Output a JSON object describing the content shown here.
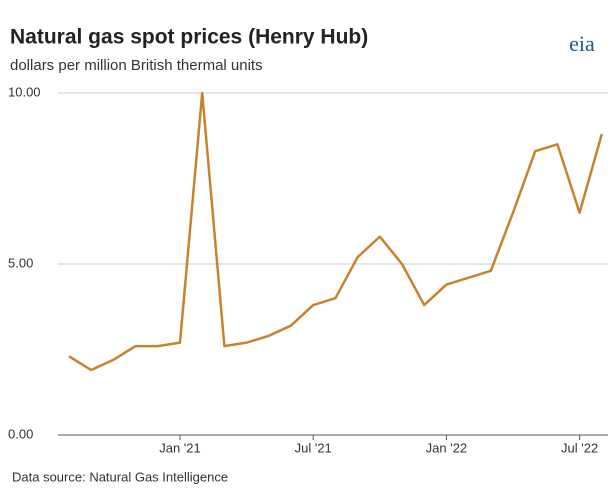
{
  "chart_data": {
    "type": "line",
    "title": "Natural gas spot prices (Henry Hub)",
    "subtitle": "dollars per million British thermal units",
    "source": "Data source: Natural Gas Intelligence",
    "logo": "eia",
    "x": [
      "2020-08",
      "2020-09",
      "2020-10",
      "2020-11",
      "2020-12",
      "2021-01",
      "2021-02",
      "2021-03",
      "2021-04",
      "2021-05",
      "2021-06",
      "2021-07",
      "2021-08",
      "2021-09",
      "2021-10",
      "2021-11",
      "2021-12",
      "2022-01",
      "2022-02",
      "2022-03",
      "2022-04",
      "2022-05",
      "2022-06",
      "2022-07",
      "2022-08"
    ],
    "series": [
      {
        "name": "Henry Hub",
        "color": "#c8822f",
        "values": [
          2.3,
          1.9,
          2.2,
          2.6,
          2.6,
          2.7,
          10,
          2.6,
          2.7,
          2.9,
          3.2,
          3.8,
          4.0,
          5.2,
          5.8,
          5.0,
          3.8,
          4.4,
          4.6,
          4.8,
          6.5,
          8.3,
          8.5,
          6.5,
          8.8
        ]
      }
    ],
    "xticks": [
      {
        "value": "2021-01",
        "label": "Jan '21"
      },
      {
        "value": "2021-07",
        "label": "Jul '21"
      },
      {
        "value": "2022-01",
        "label": "Jan '22"
      },
      {
        "value": "2022-07",
        "label": "Jul '22"
      }
    ],
    "ylim": [
      0,
      10
    ],
    "yticks": [
      {
        "value": 0,
        "label": "0.00"
      },
      {
        "value": 5,
        "label": "5.00"
      },
      {
        "value": 10,
        "label": "10.00"
      }
    ],
    "grid": true
  }
}
